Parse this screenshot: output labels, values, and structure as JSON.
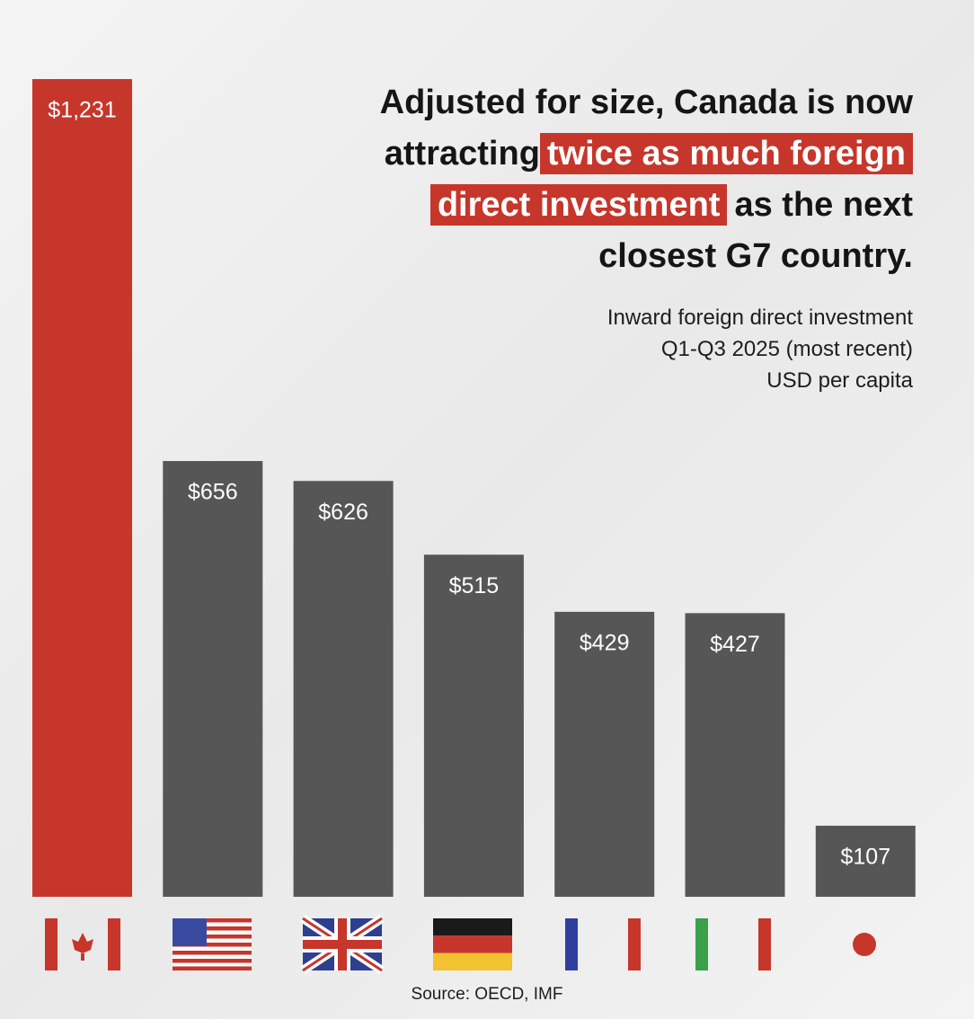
{
  "chart_data": {
    "type": "bar",
    "title_lines": [
      [
        {
          "text": "Adjusted for size, Canada is now",
          "highlight": false
        }
      ],
      [
        {
          "text": "attracting",
          "highlight": false
        },
        {
          "text": "twice as much foreign",
          "highlight": true
        }
      ],
      [
        {
          "text": "direct investment",
          "highlight": true
        },
        {
          "text": "as the next",
          "highlight": false
        }
      ],
      [
        {
          "text": "closest G7 country.",
          "highlight": false
        }
      ]
    ],
    "subtitle_lines": [
      "Inward foreign direct investment",
      "Q1-Q3 2025 (most recent)",
      "USD per capita"
    ],
    "source": "Source: OECD, IMF",
    "categories": [
      null,
      null,
      null,
      null,
      null,
      null,
      null
    ],
    "values": [
      1231,
      656,
      626,
      515,
      429,
      427,
      107
    ],
    "value_labels": [
      "$1,231",
      "$656",
      "$626",
      "$515",
      "$429",
      "$427",
      "$107"
    ],
    "colors": [
      "#c6362b",
      "#565656",
      "#565656",
      "#565656",
      "#565656",
      "#565656",
      "#565656"
    ],
    "highlight_color": "#c6362b"
  }
}
